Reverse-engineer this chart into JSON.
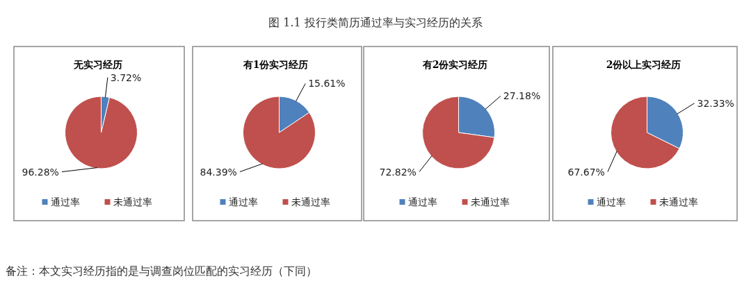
{
  "chart_data": [
    {
      "type": "other",
      "title": "图 1.1  投行类简历通过率与实习经历的关系",
      "annotations": [
        "备注：本文实习经历指的是与调查岗位匹配的实习经历（下同）"
      ]
    },
    {
      "type": "pie",
      "title": "无实习经历",
      "categories": [
        "通过率",
        "未通过率"
      ],
      "values": [
        3.72,
        96.28
      ],
      "colors": [
        "#4f81bd",
        "#c0504d"
      ],
      "value_labels": [
        "3.72%",
        "96.28%"
      ],
      "legend": "bottom"
    },
    {
      "type": "pie",
      "title": "有1份实习经历",
      "categories": [
        "通过率",
        "未通过率"
      ],
      "values": [
        15.61,
        84.39
      ],
      "colors": [
        "#4f81bd",
        "#c0504d"
      ],
      "value_labels": [
        "15.61%",
        "84.39%"
      ],
      "legend": "bottom"
    },
    {
      "type": "pie",
      "title": "有2份实习经历",
      "categories": [
        "通过率",
        "未通过率"
      ],
      "values": [
        27.18,
        72.82
      ],
      "colors": [
        "#4f81bd",
        "#c0504d"
      ],
      "value_labels": [
        "27.18%",
        "72.82%"
      ],
      "legend": "bottom"
    },
    {
      "type": "pie",
      "title": "2份以上实习经历",
      "categories": [
        "通过率",
        "未通过率"
      ],
      "values": [
        32.33,
        67.67
      ],
      "colors": [
        "#4f81bd",
        "#c0504d"
      ],
      "value_labels": [
        "32.33%",
        "67.67%"
      ],
      "legend": "bottom"
    }
  ]
}
